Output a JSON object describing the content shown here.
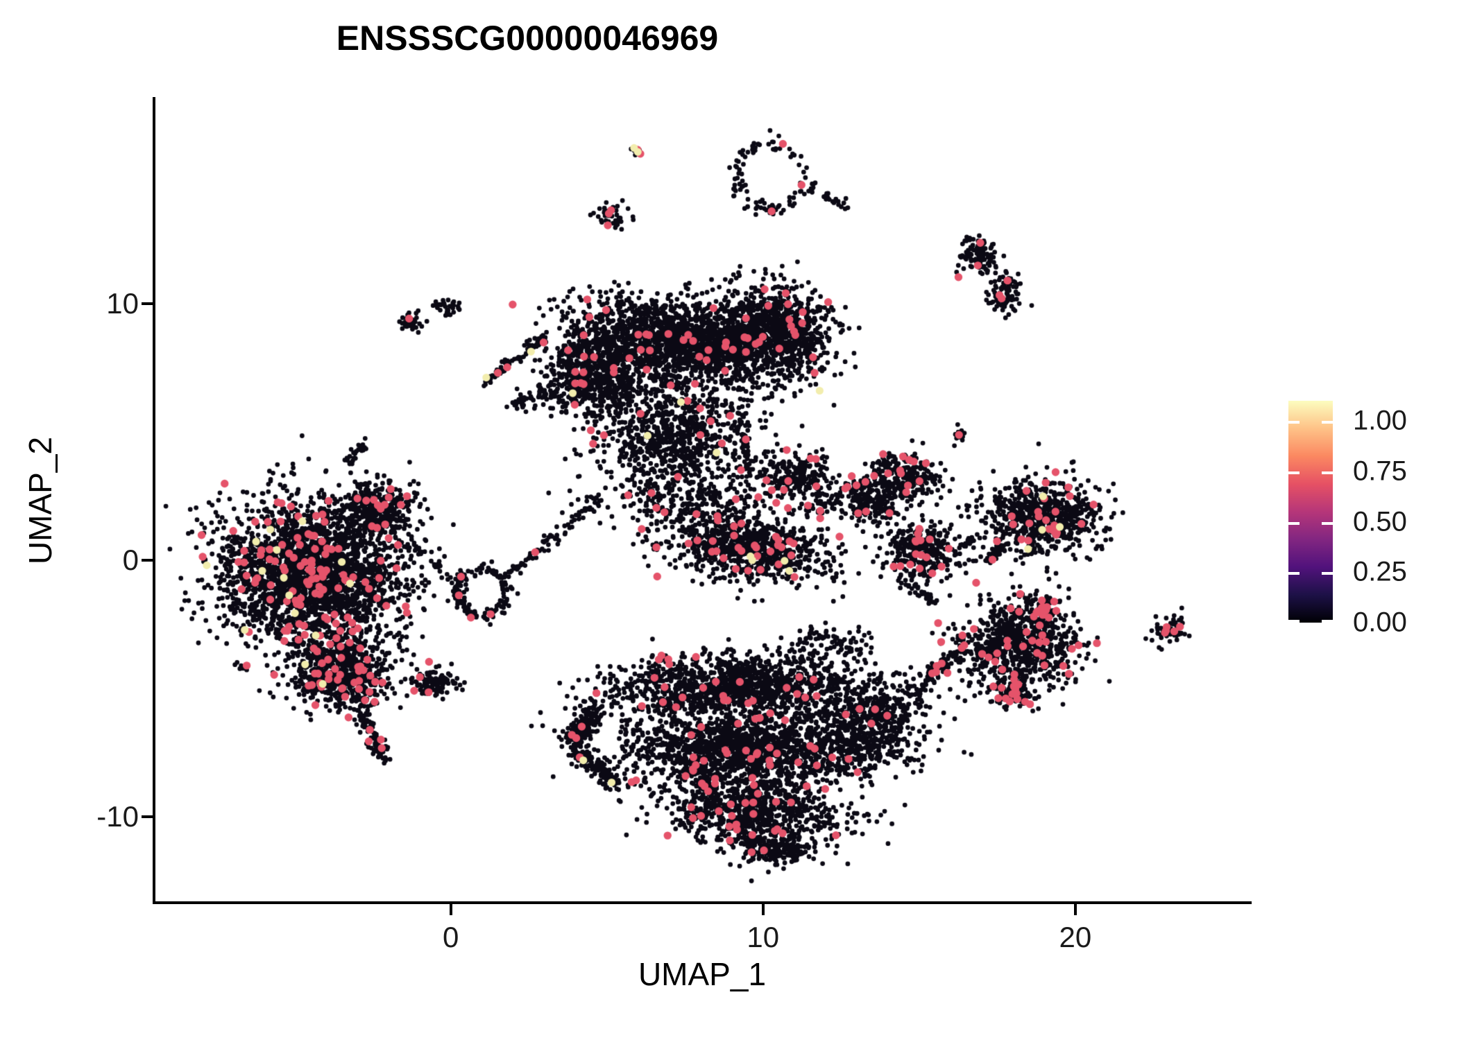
{
  "chart_data": {
    "type": "scatter",
    "title": "ENSSSCG00000046969",
    "xlabel": "UMAP_1",
    "ylabel": "UMAP_2",
    "xlim": [
      -9.5,
      25.6
    ],
    "ylim": [
      -13.35,
      18.0
    ],
    "grid": false,
    "x_ticks": [
      {
        "label": "0",
        "value": 0
      },
      {
        "label": "10",
        "value": 10
      },
      {
        "label": "20",
        "value": 20
      }
    ],
    "y_ticks": [
      {
        "label": "10",
        "value": 10
      },
      {
        "label": "0",
        "value": 0
      },
      {
        "label": "-10",
        "value": -10
      }
    ],
    "colorbar": {
      "position": "right",
      "min": 0,
      "max": 1.1,
      "ticks": [
        {
          "label": "1.00",
          "value": 1.0
        },
        {
          "label": "0.75",
          "value": 0.75
        },
        {
          "label": "0.50",
          "value": 0.5
        },
        {
          "label": "0.25",
          "value": 0.25
        },
        {
          "label": "0.00",
          "value": 0.0
        }
      ],
      "palette_name": "magma",
      "palette": [
        "#000004",
        "#1d1147",
        "#51127c",
        "#822681",
        "#b63679",
        "#e65164",
        "#fb8861",
        "#fec287",
        "#fcfdbf"
      ]
    },
    "point_colors": {
      "zero_expression": "#0b0914",
      "mid_expression": "#e5536a",
      "high_expression": "#f2edad"
    },
    "point_radius": {
      "zero": 3.4,
      "mid": 5.7,
      "high": 5.6
    },
    "clusters": [
      {
        "t": "g",
        "x": 7.3,
        "y": 8.59,
        "sx": 1.66,
        "sy": 0.81,
        "rot": -10,
        "n": 1600,
        "rf": 0.015,
        "yf": 0.002
      },
      {
        "t": "g",
        "x": 10.4,
        "y": 8.86,
        "sx": 0.88,
        "sy": 0.94,
        "n": 900,
        "rf": 0.03,
        "yf": 0.002
      },
      {
        "t": "g",
        "x": 4.65,
        "y": 7.24,
        "sx": 0.78,
        "sy": 0.88,
        "n": 700,
        "rf": 0.015,
        "yf": 0.002
      },
      {
        "t": "g",
        "x": 7.3,
        "y": 5.08,
        "sx": 1.21,
        "sy": 1.08,
        "n": 800,
        "rf": 0.015,
        "yf": 0.003
      },
      {
        "t": "g",
        "x": 7.74,
        "y": 2.38,
        "sx": 1.44,
        "sy": 0.68,
        "n": 330,
        "rf": 0.02
      },
      {
        "t": "g",
        "x": 11.06,
        "y": 3.19,
        "sx": 0.6,
        "sy": 0.5,
        "n": 250,
        "rf": 0.03
      },
      {
        "t": "g",
        "x": 14.6,
        "y": 3.19,
        "sx": 0.55,
        "sy": 0.45,
        "n": 220,
        "rf": 0.04
      },
      {
        "t": "g",
        "x": 13.38,
        "y": 2.24,
        "sx": 0.5,
        "sy": 0.4,
        "n": 180,
        "rf": 0.03
      },
      {
        "t": "l",
        "x": 2.1,
        "y": 6.03,
        "x2": 3.32,
        "y2": 6.7,
        "w": 0.14,
        "n": 60,
        "rf": 0.02
      },
      {
        "t": "l",
        "x": 1.88,
        "y": -0.59,
        "x2": 4.76,
        "y2": 2.38,
        "w": 0.1,
        "n": 80,
        "rf": 0.03
      },
      {
        "t": "l",
        "x": 9.18,
        "y": 5.62,
        "x2": 9.62,
        "y2": 3.46,
        "w": 0.11,
        "n": 45,
        "rf": 0.02
      },
      {
        "t": "g",
        "x": 9.51,
        "y": 0.49,
        "sx": 1.33,
        "sy": 0.61,
        "rot": -12,
        "n": 800,
        "rf": 0.035,
        "yf": 0.01
      },
      {
        "t": "l",
        "x": 11.73,
        "y": 1.7,
        "x2": 14.16,
        "y2": 4.05,
        "w": 0.11,
        "n": 70,
        "rf": 0.06
      },
      {
        "t": "g",
        "x": 15.04,
        "y": 0.35,
        "sx": 0.61,
        "sy": 0.57,
        "n": 320,
        "rf": 0.045,
        "yf": 0.008
      },
      {
        "t": "l",
        "x": 14.6,
        "y": -0.86,
        "x2": 15.49,
        "y2": -1.68,
        "w": 0.1,
        "n": 30
      },
      {
        "t": "l",
        "x": 16.26,
        "y": 0.54,
        "x2": 16.92,
        "y2": 0.81,
        "w": 0.08,
        "n": 15
      },
      {
        "t": "g",
        "x": 16.26,
        "y": 4.86,
        "sx": 0.11,
        "sy": 0.16,
        "n": 14,
        "rf": 0.15
      },
      {
        "t": "g",
        "x": 18.92,
        "y": 1.7,
        "sx": 0.94,
        "sy": 0.74,
        "rot": -5,
        "n": 700,
        "rf": 0.035,
        "yf": 0.003
      },
      {
        "t": "l",
        "x": 17.7,
        "y": 0.54,
        "x2": 17.15,
        "y2": 0.0,
        "w": 0.09,
        "n": 40,
        "rf": 0.02
      },
      {
        "t": "g",
        "x": 18.14,
        "y": -3.3,
        "sx": 1.0,
        "sy": 0.88,
        "rot": 10,
        "n": 800,
        "rf": 0.04
      },
      {
        "t": "g",
        "x": 19.03,
        "y": -1.95,
        "sx": 0.25,
        "sy": 0.25,
        "n": 45,
        "rf": 0.45
      },
      {
        "t": "g",
        "x": 18.03,
        "y": -5.19,
        "sx": 0.31,
        "sy": 0.25,
        "n": 90,
        "rf": 0.3
      },
      {
        "t": "g",
        "x": 23.01,
        "y": -2.7,
        "sx": 0.28,
        "sy": 0.27,
        "n": 60,
        "rf": 0.05
      },
      {
        "t": "g",
        "x": 16.92,
        "y": 11.84,
        "sx": 0.31,
        "sy": 0.34,
        "n": 110,
        "rf": 0.03
      },
      {
        "t": "g",
        "x": 17.74,
        "y": 10.35,
        "sx": 0.25,
        "sy": 0.43,
        "n": 95,
        "rf": 0.03
      },
      {
        "t": "g",
        "x": -4.42,
        "y": -0.46,
        "sx": 1.49,
        "sy": 1.42,
        "n": 2600,
        "rf": 0.045,
        "yf": 0.003
      },
      {
        "t": "g",
        "x": -2.32,
        "y": 1.97,
        "sx": 0.61,
        "sy": 0.51,
        "n": 320,
        "rf": 0.04
      },
      {
        "t": "g",
        "x": -3.54,
        "y": -4.38,
        "sx": 0.83,
        "sy": 0.74,
        "n": 700,
        "rf": 0.05,
        "yf": 0.004
      },
      {
        "t": "l",
        "x": -2.88,
        "y": -5.73,
        "x2": -2.15,
        "y2": -7.76,
        "w": 0.13,
        "n": 90,
        "rf": 0.04
      },
      {
        "t": "g",
        "x": -6.68,
        "y": -4.11,
        "sx": 0.1,
        "sy": 0.12,
        "n": 9,
        "rf": 0.22
      },
      {
        "t": "l",
        "x": -1.44,
        "y": 0.89,
        "x2": 0.33,
        "y2": -1.19,
        "w": 0.07,
        "n": 25
      },
      {
        "t": "r",
        "x": 1.04,
        "y": -1.22,
        "rx": 0.8,
        "ry": 0.97,
        "w": 0.11,
        "n": 130,
        "rf": 0.025
      },
      {
        "t": "g",
        "x": -0.55,
        "y": -4.78,
        "sx": 0.37,
        "sy": 0.3,
        "n": 110,
        "rf": 0.03
      },
      {
        "t": "g",
        "x": 5.93,
        "y": 15.95,
        "sx": 0.09,
        "sy": 0.13,
        "n": 13,
        "rf": 0.07,
        "yf": 0.1
      },
      {
        "t": "r",
        "x": 10.18,
        "y": 14.95,
        "rx": 1.06,
        "ry": 1.3,
        "w": 0.12,
        "n": 95,
        "rf": 0.03
      },
      {
        "t": "l",
        "x": 11.5,
        "y": 14.59,
        "x2": 12.57,
        "y2": 13.78,
        "w": 0.08,
        "n": 26
      },
      {
        "t": "g",
        "x": 5.13,
        "y": 13.41,
        "sx": 0.27,
        "sy": 0.27,
        "n": 50,
        "rf": 0.05
      },
      {
        "t": "g",
        "x": -1.28,
        "y": 9.35,
        "sx": 0.18,
        "sy": 0.18,
        "n": 35,
        "rf": 0.06
      },
      {
        "t": "g",
        "x": -0.09,
        "y": 9.89,
        "sx": 0.2,
        "sy": 0.15,
        "n": 35
      },
      {
        "t": "l",
        "x": 1.11,
        "y": 6.92,
        "x2": 2.92,
        "y2": 8.62,
        "w": 0.1,
        "n": 60,
        "rf": 0.05,
        "yf": 0.02
      },
      {
        "t": "l",
        "x": -3.32,
        "y": 3.78,
        "x2": -2.7,
        "y2": 4.59,
        "w": 0.09,
        "n": 26,
        "rf": 0.06
      },
      {
        "t": "g",
        "x": 9.07,
        "y": -4.92,
        "sx": 2.1,
        "sy": 0.61,
        "rot": 3,
        "n": 1300,
        "rf": 0.012
      },
      {
        "t": "g",
        "x": 9.51,
        "y": -7.35,
        "sx": 1.99,
        "sy": 0.74,
        "n": 1500,
        "rf": 0.015
      },
      {
        "t": "g",
        "x": 9.73,
        "y": -9.78,
        "sx": 1.44,
        "sy": 0.74,
        "rot": -8,
        "n": 900,
        "rf": 0.03
      },
      {
        "t": "g",
        "x": 10.4,
        "y": -11.35,
        "sx": 0.5,
        "sy": 0.27,
        "n": 150,
        "rf": 0.02
      },
      {
        "t": "g",
        "x": 13.5,
        "y": -6.27,
        "sx": 0.88,
        "sy": 0.81,
        "rot": 15,
        "n": 500,
        "rf": 0.015
      },
      {
        "t": "l",
        "x": 14.6,
        "y": -5.19,
        "x2": 16.55,
        "y2": -3.35,
        "w": 0.12,
        "n": 80,
        "rf": 0.03
      },
      {
        "t": "l",
        "x": 4.76,
        "y": -5.59,
        "x2": 3.89,
        "y2": -7.03,
        "w": 0.19,
        "n": 150,
        "rf": 0.02
      },
      {
        "t": "l",
        "x": 3.89,
        "y": -7.3,
        "x2": 5.38,
        "y2": -8.78,
        "w": 0.17,
        "n": 130,
        "rf": 0.015,
        "yf": 0.015
      },
      {
        "t": "g",
        "x": 12.17,
        "y": -3.16,
        "sx": 0.61,
        "sy": 0.34,
        "n": 80,
        "rf": 0.02
      },
      {
        "t": "g",
        "x": 7.96,
        "y": -8.43,
        "sx": 0.33,
        "sy": 0.34,
        "n": 50,
        "rf": 0.2
      },
      {
        "t": "g",
        "x": 6.81,
        "y": -3.89,
        "sx": 0.11,
        "sy": 0.13,
        "n": 10,
        "rf": 0.3
      }
    ]
  }
}
